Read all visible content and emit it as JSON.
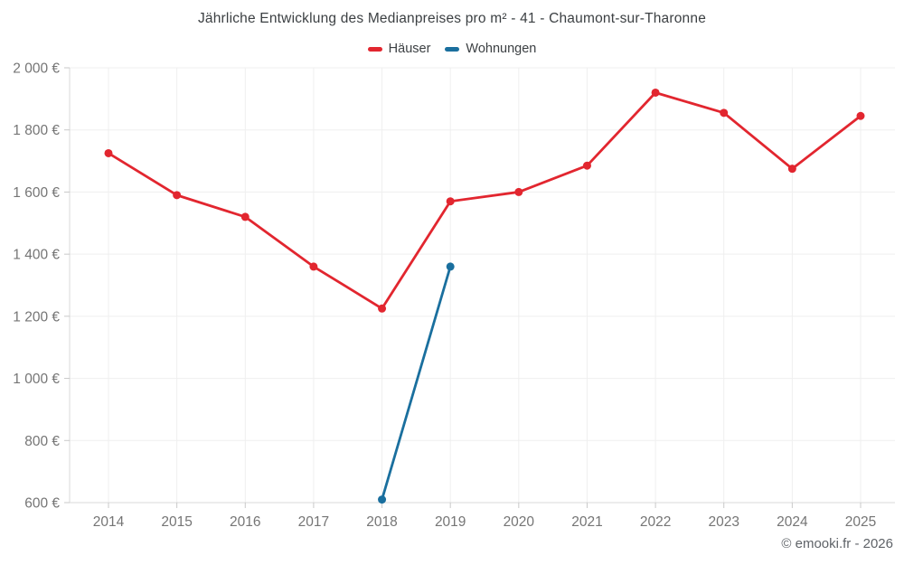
{
  "chart": {
    "title": "Jährliche Entwicklung des Medianpreises pro m² - 41 - Chaumont-sur-Tharonne",
    "copyright": "© emooki.fr - 2026"
  },
  "chart_data": {
    "type": "line",
    "categories": [
      2014,
      2015,
      2016,
      2017,
      2018,
      2019,
      2020,
      2021,
      2022,
      2023,
      2024,
      2025
    ],
    "series": [
      {
        "name": "Häuser",
        "color": "#e2262f",
        "values": [
          1725,
          1590,
          1520,
          1360,
          1225,
          1570,
          1600,
          1685,
          1920,
          1855,
          1675,
          1845
        ]
      },
      {
        "name": "Wohnungen",
        "color": "#1a6f9e",
        "values": [
          null,
          null,
          null,
          null,
          610,
          1360,
          null,
          null,
          null,
          null,
          null,
          null
        ]
      }
    ],
    "title": "Jährliche Entwicklung des Medianpreises pro m² - 41 - Chaumont-sur-Tharonne",
    "xlabel": "",
    "ylabel": "",
    "ylim": [
      600,
      2000
    ],
    "yticks": [
      600,
      800,
      1000,
      1200,
      1400,
      1600,
      1800,
      2000
    ],
    "ytick_labels": [
      "600 €",
      "800 €",
      "1 000 €",
      "1 200 €",
      "1 400 €",
      "1 600 €",
      "1 800 €",
      "2 000 €"
    ],
    "grid": true,
    "legend_position": "top",
    "colors": {
      "grid": "#efefef",
      "axis": "#d8d8d8",
      "tick": "#c9c9c9",
      "tick_label": "#757575"
    }
  }
}
